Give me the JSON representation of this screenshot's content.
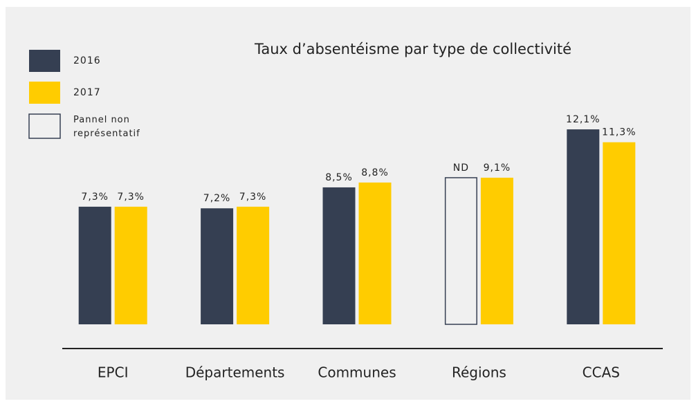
{
  "chart_data": {
    "type": "bar",
    "title": "Taux d’absentéisme par type de collectivité",
    "categories": [
      "EPCI",
      "Départements",
      "Communes",
      "Régions",
      "CCAS"
    ],
    "series": [
      {
        "name": "2016",
        "color": "#353f52",
        "values": [
          7.3,
          7.2,
          8.5,
          null,
          12.1
        ],
        "value_labels": [
          "7,3%",
          "7,2%",
          "8,5%",
          "ND",
          "12,1%"
        ]
      },
      {
        "name": "2017",
        "color": "#ffcc00",
        "values": [
          7.3,
          7.3,
          8.8,
          9.1,
          11.3
        ],
        "value_labels": [
          "7,3%",
          "7,3%",
          "8,8%",
          "9,1%",
          "11,3%"
        ]
      }
    ],
    "missing_legend": "Pannel non représentatif",
    "ylim": [
      0,
      20
    ]
  }
}
